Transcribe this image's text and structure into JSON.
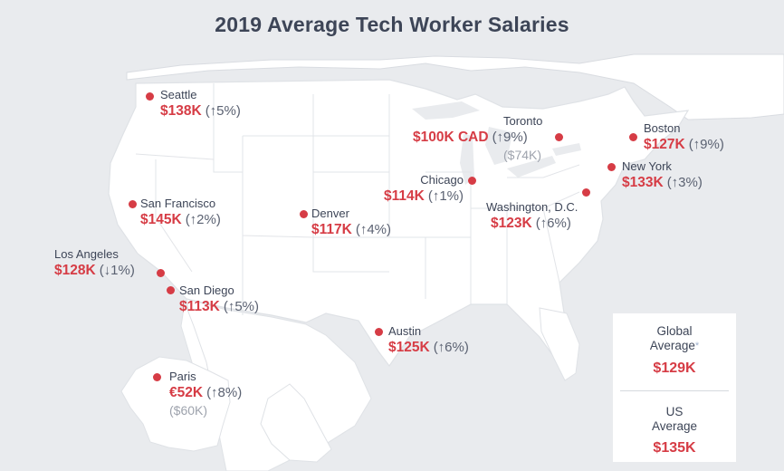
{
  "title": "2019 Average Tech Worker Salaries",
  "colors": {
    "accent": "#d63c45",
    "text": "#3d4557",
    "muted": "#9ea3ad",
    "background": "#e9ebee",
    "land": "#ffffff"
  },
  "cities": {
    "seattle": {
      "name": "Seattle",
      "salary": "$138K",
      "change": "(↑5%)"
    },
    "san_francisco": {
      "name": "San Francisco",
      "salary": "$145K",
      "change": "(↑2%)"
    },
    "los_angeles": {
      "name": "Los Angeles",
      "salary": "$128K",
      "change": "(↓1%)"
    },
    "san_diego": {
      "name": "San Diego",
      "salary": "$113K",
      "change": "(↑5%)"
    },
    "denver": {
      "name": "Denver",
      "salary": "$117K",
      "change": "(↑4%)"
    },
    "austin": {
      "name": "Austin",
      "salary": "$125K",
      "change": "(↑6%)"
    },
    "chicago": {
      "name": "Chicago",
      "salary": "$114K",
      "change": "(↑1%)"
    },
    "toronto": {
      "name": "Toronto",
      "salary": "$100K CAD",
      "change": "(↑9%)",
      "converted": "($74K)"
    },
    "washington": {
      "name": "Washington, D.C.",
      "salary": "$123K",
      "change": "(↑6%)"
    },
    "new_york": {
      "name": "New York",
      "salary": "$133K",
      "change": "(↑3%)"
    },
    "boston": {
      "name": "Boston",
      "salary": "$127K",
      "change": "(↑9%)"
    },
    "paris": {
      "name": "Paris",
      "salary": "€52K",
      "change": "(↑8%)",
      "converted": "($60K)"
    }
  },
  "averages": {
    "global_label_line1": "Global",
    "global_label_line2": "Average",
    "global_asterisk": "*",
    "global_value": "$129K",
    "us_label_line1": "US",
    "us_label_line2": "Average",
    "us_value": "$135K"
  }
}
